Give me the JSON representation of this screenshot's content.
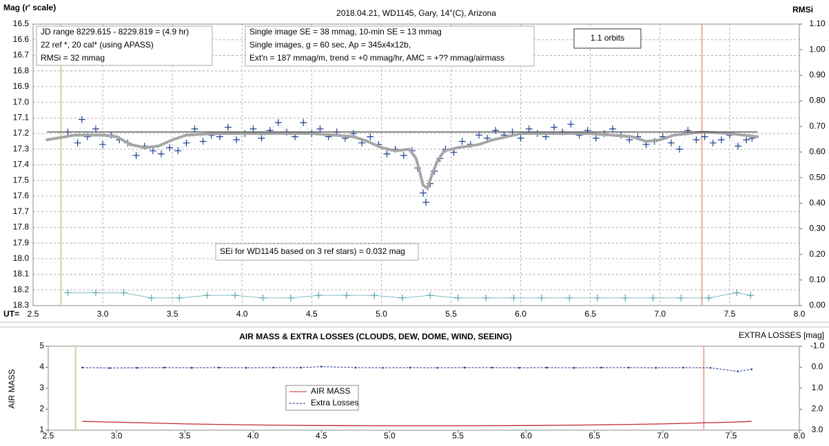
{
  "chart_data": [
    {
      "type": "line",
      "title": "2018.04.21,  WD1145, Gary, 14\"(C), Arizona",
      "y_label": "Mag (r' scale)",
      "y2_label": "RMSi",
      "x_label": "UT=",
      "xlim": [
        2.5,
        8.0
      ],
      "ylim": [
        16.5,
        18.3
      ],
      "y_inverted": true,
      "y2lim": [
        0,
        1.1
      ],
      "grid": true,
      "xticks": [
        2.5,
        {
          "value": 3,
          "label": "3.0"
        },
        3.5,
        {
          "value": 4,
          "label": "4.0"
        },
        4.5,
        {
          "value": 5,
          "label": "5.0"
        },
        5.5,
        {
          "value": 6,
          "label": "6.0"
        },
        6.5,
        {
          "value": 7,
          "label": "7.0"
        },
        7.5,
        {
          "value": 8,
          "label": "8.0"
        }
      ],
      "yticks": [
        16.5,
        16.6,
        16.7,
        16.8,
        16.9,
        {
          "value": 17,
          "label": "17.0"
        },
        17.1,
        17.2,
        17.3,
        17.4,
        17.5,
        17.6,
        17.7,
        17.8,
        17.9,
        {
          "value": 18,
          "label": "18.0"
        },
        18.1,
        18.2,
        18.3
      ],
      "y2ticks": [
        {
          "value": 0,
          "label": "0.00"
        },
        {
          "value": 0.1,
          "label": "0.10"
        },
        {
          "value": 0.2,
          "label": "0.20"
        },
        {
          "value": 0.3,
          "label": "0.30"
        },
        {
          "value": 0.4,
          "label": "0.40"
        },
        {
          "value": 0.5,
          "label": "0.50"
        },
        {
          "value": 0.6,
          "label": "0.60"
        },
        {
          "value": 0.7,
          "label": "0.70"
        },
        {
          "value": 0.8,
          "label": "0.80"
        },
        {
          "value": 0.9,
          "label": "0.90"
        },
        {
          "value": 1,
          "label": "1.00"
        },
        {
          "value": 1.1,
          "label": "1.10"
        }
      ],
      "series": [
        {
          "color": "#1f3f8f",
          "marker": "+",
          "line": "dotted",
          "x": [
            2.75,
            2.82,
            2.85,
            2.89,
            2.95,
            3.0,
            3.06,
            3.12,
            3.18,
            3.24,
            3.3,
            3.36,
            3.42,
            3.48,
            3.54,
            3.6,
            3.66,
            3.72,
            3.78,
            3.84,
            3.9,
            3.96,
            4.02,
            4.08,
            4.14,
            4.2,
            4.26,
            4.32,
            4.38,
            4.44,
            4.5,
            4.56,
            4.62,
            4.68,
            4.74,
            4.8,
            4.86,
            4.92,
            4.98,
            5.04,
            5.1,
            5.16,
            5.22,
            5.26,
            5.3,
            5.32,
            5.35,
            5.38,
            5.42,
            5.46,
            5.52,
            5.58,
            5.64,
            5.7,
            5.76,
            5.82,
            5.88,
            5.94,
            6.0,
            6.06,
            6.12,
            6.18,
            6.24,
            6.3,
            6.36,
            6.42,
            6.48,
            6.54,
            6.6,
            6.66,
            6.72,
            6.78,
            6.84,
            6.9,
            6.96,
            7.02,
            7.08,
            7.14,
            7.2,
            7.26,
            7.32,
            7.38,
            7.44,
            7.5,
            7.56,
            7.62,
            7.66
          ],
          "values": [
            17.19,
            17.26,
            17.11,
            17.22,
            17.17,
            17.27,
            17.21,
            17.24,
            17.26,
            17.34,
            17.28,
            17.31,
            17.33,
            17.29,
            17.31,
            17.26,
            17.17,
            17.25,
            17.21,
            17.22,
            17.16,
            17.24,
            17.2,
            17.17,
            17.23,
            17.18,
            17.13,
            17.19,
            17.22,
            17.13,
            17.2,
            17.17,
            17.22,
            17.19,
            17.23,
            17.2,
            17.26,
            17.22,
            17.27,
            17.33,
            17.3,
            17.34,
            17.31,
            17.42,
            17.58,
            17.64,
            17.52,
            17.44,
            17.36,
            17.3,
            17.32,
            17.25,
            17.27,
            17.21,
            17.23,
            17.18,
            17.21,
            17.19,
            17.23,
            17.17,
            17.2,
            17.22,
            17.16,
            17.19,
            17.14,
            17.21,
            17.18,
            17.23,
            17.2,
            17.17,
            17.21,
            17.24,
            17.22,
            17.27,
            17.25,
            17.22,
            17.26,
            17.3,
            17.18,
            17.24,
            17.22,
            17.26,
            17.24,
            17.21,
            17.28,
            17.24,
            17.23
          ]
        },
        {
          "color": "#a6a6a6",
          "line": "thick",
          "x": [
            2.6,
            2.8,
            3.0,
            3.1,
            3.2,
            3.3,
            3.4,
            3.5,
            3.6,
            3.8,
            4.0,
            4.5,
            4.8,
            4.9,
            5.0,
            5.1,
            5.2,
            5.25,
            5.3,
            5.33,
            5.36,
            5.4,
            5.45,
            5.55,
            5.7,
            5.8,
            6.0,
            6.5,
            6.8,
            6.9,
            7.0,
            7.1,
            7.3,
            7.5,
            7.7
          ],
          "values": [
            17.24,
            17.21,
            17.21,
            17.22,
            17.27,
            17.29,
            17.28,
            17.24,
            17.21,
            17.2,
            17.2,
            17.2,
            17.22,
            17.25,
            17.29,
            17.31,
            17.3,
            17.36,
            17.53,
            17.55,
            17.47,
            17.38,
            17.31,
            17.29,
            17.27,
            17.24,
            17.2,
            17.2,
            17.22,
            17.25,
            17.24,
            17.21,
            17.19,
            17.2,
            17.22
          ]
        },
        {
          "color": "#404040",
          "line": "solid",
          "x": [
            2.6,
            7.7
          ],
          "values": [
            17.19,
            17.19
          ]
        },
        {
          "color": "#5aa6b0",
          "marker": "+",
          "line": "solid",
          "axis": "y2",
          "x": [
            2.75,
            2.95,
            3.15,
            3.35,
            3.55,
            3.75,
            3.95,
            4.15,
            4.35,
            4.55,
            4.75,
            4.95,
            5.15,
            5.35,
            5.55,
            5.75,
            5.95,
            6.15,
            6.35,
            6.55,
            6.75,
            6.95,
            7.15,
            7.35,
            7.55,
            7.65
          ],
          "values": [
            0.05,
            0.05,
            0.05,
            0.03,
            0.03,
            0.04,
            0.04,
            0.03,
            0.03,
            0.04,
            0.04,
            0.04,
            0.03,
            0.04,
            0.03,
            0.03,
            0.03,
            0.03,
            0.03,
            0.03,
            0.03,
            0.03,
            0.03,
            0.03,
            0.05,
            0.04
          ]
        }
      ],
      "vlines": [
        {
          "x": 2.7,
          "color": "#b9dca2"
        },
        {
          "x": 7.3,
          "color": "#f0a898"
        }
      ],
      "annotations": [
        [
          "JD range  8229.615 - 8229.819  = (4.9 hr)",
          "22 ref *, 20 cal* (using APASS)",
          "RMSi = 32 mmag"
        ],
        [
          "Single image SE = 38 mmag, 10-min SE = 13 mmag",
          "Single images, g = 60 sec, Ap = 345x4x12b,",
          "Ext'n = 187 mmag/m, trend = +0 mmag/hr, AMC = +?? mmag/airmass"
        ],
        [
          "1.1 orbits"
        ],
        [
          "SEi for WD1145 based on 3 ref stars) = 0.032 mag"
        ]
      ]
    },
    {
      "type": "line",
      "title": "AIR MASS & EXTRA LOSSES (CLOUDS, DEW, DOME, WIND, SEEING)",
      "y_label": "AIR MASS",
      "y2_label": "EXTRA LOSSES [mag]",
      "xlim": [
        2.5,
        8.0
      ],
      "ylim": [
        1,
        5
      ],
      "y2lim": [
        3.0,
        -1.0
      ],
      "grid": false,
      "xticks": [
        2.5,
        {
          "value": 3,
          "label": "3.0"
        },
        3.5,
        {
          "value": 4,
          "label": "4.0"
        },
        4.5,
        {
          "value": 5,
          "label": "5.0"
        },
        5.5,
        {
          "value": 6,
          "label": "6.0"
        },
        6.5,
        {
          "value": 7,
          "label": "7.0"
        },
        7.5,
        {
          "value": 8,
          "label": "8.0"
        }
      ],
      "yticks": [
        1,
        2,
        3,
        4,
        5
      ],
      "y2ticks": [
        {
          "value": -1,
          "label": "-1.0"
        },
        {
          "value": 0,
          "label": "0.0"
        },
        {
          "value": 1,
          "label": "1.0"
        },
        {
          "value": 2,
          "label": "2.0"
        },
        {
          "value": 3,
          "label": "3.0"
        }
      ],
      "series": [
        {
          "name": "AIR MASS",
          "color": "#c0272d",
          "line": "solid",
          "x": [
            2.75,
            3.0,
            3.5,
            4.0,
            4.5,
            5.0,
            5.5,
            6.0,
            6.5,
            7.0,
            7.5,
            7.65
          ],
          "values": [
            1.42,
            1.38,
            1.3,
            1.25,
            1.22,
            1.21,
            1.21,
            1.22,
            1.25,
            1.3,
            1.38,
            1.42
          ]
        },
        {
          "name": "Extra Losses",
          "color": "#1a2f8f",
          "line": "dashed",
          "marker": "dot",
          "axis": "y2",
          "x": [
            2.75,
            2.95,
            3.15,
            3.35,
            3.55,
            3.75,
            3.95,
            4.15,
            4.35,
            4.5,
            4.75,
            4.95,
            5.15,
            5.35,
            5.55,
            5.75,
            5.95,
            6.15,
            6.35,
            6.55,
            6.75,
            6.95,
            7.15,
            7.35,
            7.55,
            7.65
          ],
          "values": [
            0.02,
            0.04,
            0.03,
            0.02,
            0.03,
            0.02,
            0.03,
            0.02,
            0.02,
            -0.03,
            0.02,
            0.03,
            0.02,
            0.03,
            0.02,
            0.02,
            0.03,
            0.02,
            0.03,
            0.02,
            0.02,
            0.03,
            0.02,
            0.03,
            0.2,
            0.1
          ]
        }
      ],
      "vlines": [
        {
          "x": 2.7,
          "color": "#b9dca2"
        },
        {
          "x": 7.3,
          "color": "#f0a898"
        }
      ]
    }
  ]
}
